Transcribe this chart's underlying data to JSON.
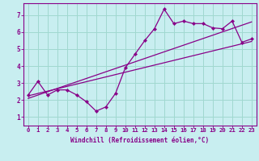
{
  "title": "",
  "xlabel": "Windchill (Refroidissement éolien,°C)",
  "ylabel": "",
  "bg_color": "#c8eef0",
  "line_color": "#880088",
  "grid_color": "#a0d8d0",
  "xlim": [
    -0.5,
    23.5
  ],
  "ylim": [
    0.5,
    7.7
  ],
  "xticks": [
    0,
    1,
    2,
    3,
    4,
    5,
    6,
    7,
    8,
    9,
    10,
    11,
    12,
    13,
    14,
    15,
    16,
    17,
    18,
    19,
    20,
    21,
    22,
    23
  ],
  "yticks": [
    1,
    2,
    3,
    4,
    5,
    6,
    7
  ],
  "zigzag_x": [
    0,
    1,
    2,
    3,
    4,
    5,
    6,
    7,
    8,
    9,
    10,
    11,
    12,
    13,
    14,
    15,
    16,
    17,
    18,
    19,
    20,
    21,
    22,
    23
  ],
  "zigzag_y": [
    2.3,
    3.1,
    2.3,
    2.6,
    2.6,
    2.3,
    1.9,
    1.35,
    1.6,
    2.4,
    3.9,
    4.7,
    5.5,
    6.2,
    7.35,
    6.5,
    6.65,
    6.5,
    6.5,
    6.25,
    6.2,
    6.65,
    5.4,
    5.6
  ],
  "trend1_x": [
    0,
    23
  ],
  "trend1_y": [
    2.25,
    5.45
  ],
  "trend2_x": [
    0,
    23
  ],
  "trend2_y": [
    2.1,
    6.6
  ],
  "xlabel_fontsize": 5.5,
  "tick_fontsize": 5.2
}
